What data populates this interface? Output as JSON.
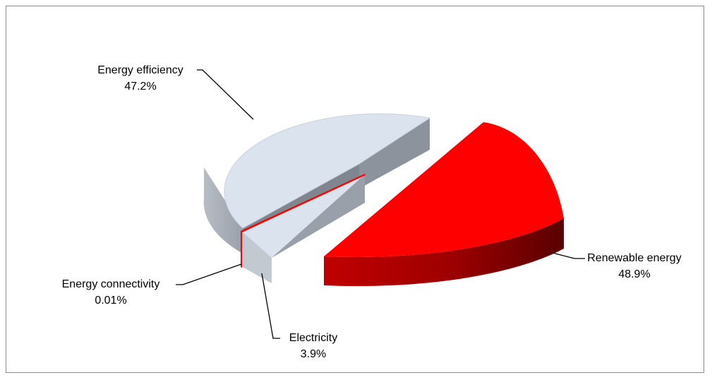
{
  "chart_data": {
    "type": "pie",
    "title": "",
    "colors": {
      "Energy efficiency": "#dbe3ef",
      "Renewable energy": "#ff0000",
      "Electricity": "#dbe3ef",
      "Energy connectivity": "#ff0000"
    },
    "slices": [
      {
        "label": "Energy efficiency",
        "value_label": "47.2%",
        "value": 47.2
      },
      {
        "label": "Renewable energy",
        "value_label": "48.9%",
        "value": 48.9
      },
      {
        "label": "Electricity",
        "value_label": "3.9%",
        "value": 3.9
      },
      {
        "label": "Energy connectivity",
        "value_label": "0.01%",
        "value": 0.01
      }
    ],
    "legend": "none",
    "style": "3d-exploded"
  }
}
